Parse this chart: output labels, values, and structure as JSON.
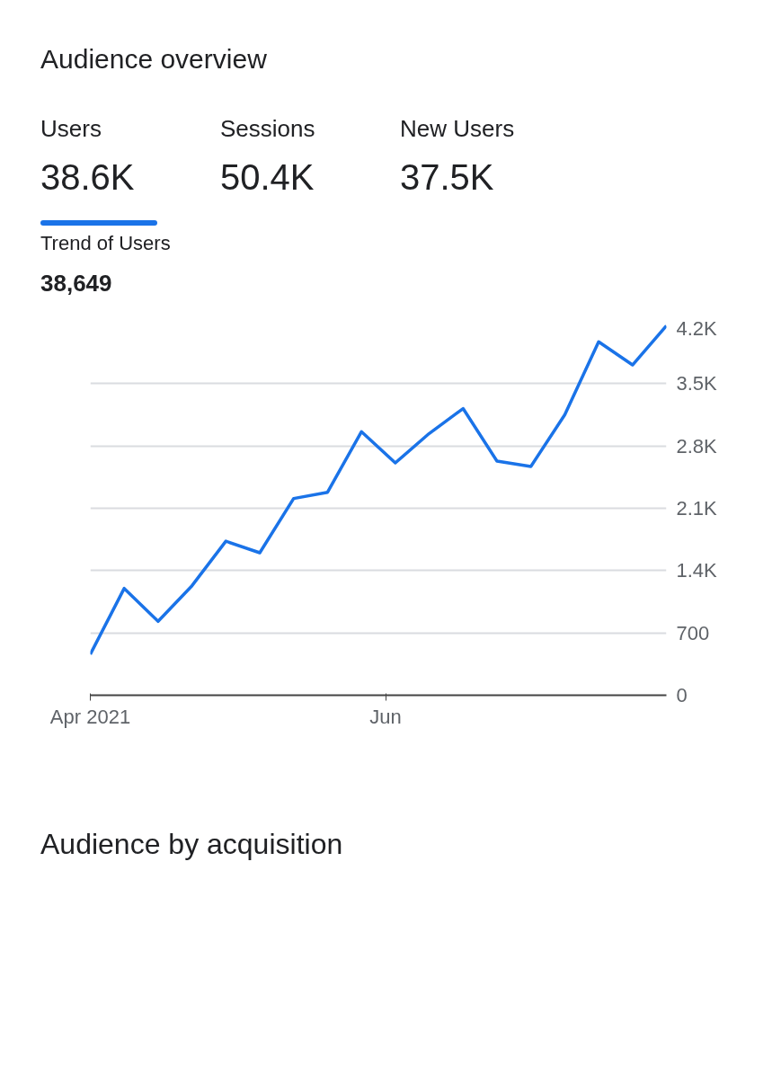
{
  "chart_data": {
    "type": "line",
    "title": "Trend of Users",
    "subtitle": "38,649",
    "annotations": [
      "Audience overview",
      "Users",
      "38.6K",
      "Sessions",
      "50.4K",
      "New Users",
      "37.5K",
      "Audience by acquisition"
    ],
    "x": [
      "2021-04-01",
      "2021-04-08",
      "2021-04-15",
      "2021-04-22",
      "2021-04-29",
      "2021-05-06",
      "2021-05-13",
      "2021-05-20",
      "2021-05-27",
      "2021-06-03",
      "2021-06-10",
      "2021-06-17",
      "2021-06-24",
      "2021-07-01",
      "2021-07-08",
      "2021-07-15",
      "2021-07-22",
      "2021-07-29"
    ],
    "series": [
      {
        "color": "#1a73e8",
        "values": [
          460,
          1200,
          830,
          1230,
          1730,
          1600,
          2210,
          2280,
          2960,
          2610,
          2940,
          3220,
          2630,
          2570,
          3150,
          3970,
          3710,
          4150
        ]
      }
    ],
    "xlim": [
      "2021-04-01",
      "2021-07-29"
    ],
    "xticks": [
      {
        "value": "2021-04-01",
        "label": "Apr 2021"
      },
      {
        "value": "2021-06-01",
        "label": "Jun"
      }
    ],
    "ylim": [
      0,
      4200
    ],
    "yticks": [
      0,
      700,
      {
        "value": 1400,
        "label": "1.4K"
      },
      {
        "value": 2100,
        "label": "2.1K"
      },
      {
        "value": 2800,
        "label": "2.8K"
      },
      {
        "value": 3500,
        "label": "3.5K"
      },
      {
        "value": 4200,
        "label": "4.2K"
      }
    ],
    "grid": "y",
    "marker": "none",
    "line_style": "solid"
  }
}
